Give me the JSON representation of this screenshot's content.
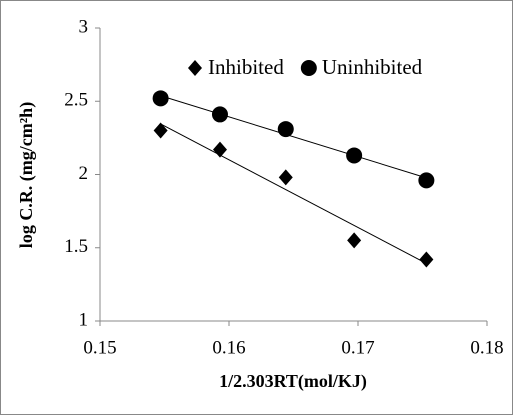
{
  "chart_data": {
    "type": "scatter",
    "x_label": "1/2.303RT(mol/KJ)",
    "y_label": "log C.R. (mg/cm²h)",
    "series": [
      {
        "name": "Inhibited",
        "color": "#000000",
        "marker": "diamond",
        "x": [
          0.1547,
          0.1593,
          0.1644,
          0.1697,
          0.1753
        ],
        "values": [
          2.3,
          2.17,
          1.98,
          1.55,
          1.42
        ]
      },
      {
        "name": "Uninhibited",
        "color": "#000000",
        "marker": "circle",
        "x": [
          0.1547,
          0.1593,
          0.1644,
          0.1697,
          0.1753
        ],
        "values": [
          2.52,
          2.41,
          2.31,
          2.13,
          1.96
        ]
      }
    ],
    "trendline": true,
    "xlim": [
      0.15,
      0.18
    ],
    "xticks": [
      0.15,
      0.16,
      0.17,
      0.18
    ],
    "ylim": [
      1,
      3
    ],
    "yticks": [
      1,
      1.5,
      2,
      2.5,
      3
    ],
    "grid": false,
    "legend": "top-right"
  }
}
